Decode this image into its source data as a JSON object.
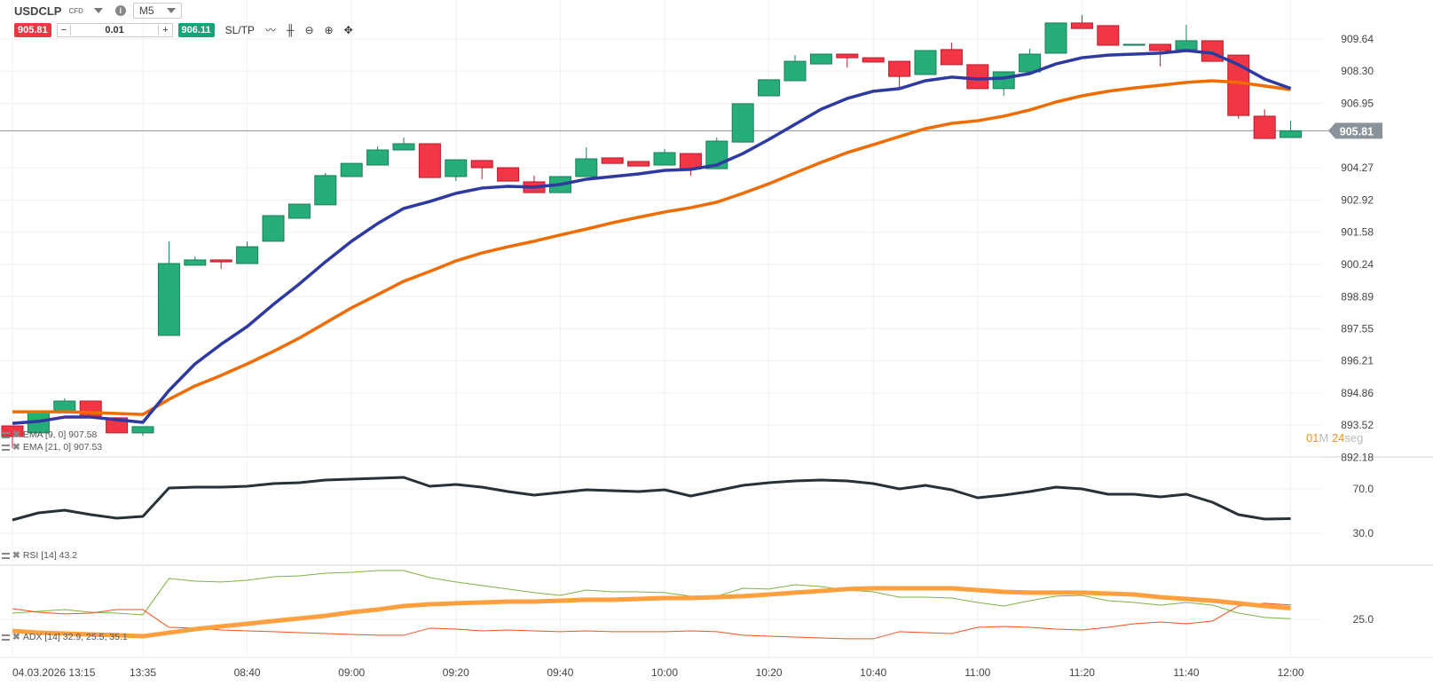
{
  "header": {
    "symbol": "USDCLP",
    "badge": "CFD",
    "timeframe": "M5"
  },
  "trade": {
    "sell_price": "905.81",
    "quantity": "0.01",
    "buy_price": "906.11",
    "sltp_label": "SL/TP",
    "minus": "−",
    "plus": "+"
  },
  "toolbar_icons": [
    "line-chart-icon",
    "candles-icon",
    "zoom-out-icon",
    "zoom-in-icon",
    "crosshair-move-icon"
  ],
  "colors": {
    "up": "#26ad7a",
    "down": "#f23645",
    "ema9": "#2e3a9f",
    "ema21": "#ef6c00",
    "rsi": "#263238",
    "plus_di": "#7cb342",
    "minus_di": "#f4511e",
    "adx": "#ffa040",
    "last_price_tag": "#8a9399"
  },
  "legends": {
    "ema9": "EMA [9, 0] 907.58",
    "ema21": "EMA [21, 0] 907.53",
    "rsi": "RSI [14] 43.2",
    "adx": "ADX [14] 32.9, 25.5, 35.1"
  },
  "timer": {
    "min": "01",
    "min_unit": "M",
    "sec": "24",
    "sec_unit": "seg"
  },
  "chart_data": [
    {
      "type": "candlestick",
      "title": "USDCLP M5",
      "y_ticks": [
        "909.64",
        "908.30",
        "906.95",
        "904.27",
        "902.92",
        "901.58",
        "900.24",
        "898.89",
        "897.55",
        "896.21",
        "894.86",
        "893.52",
        "892.18"
      ],
      "last_price": "905.81",
      "x_labels": [
        {
          "i": 0,
          "t": "04.03.2026 13:15"
        },
        {
          "i": 5,
          "t": "13:35"
        },
        {
          "i": 9,
          "t": "08:40"
        },
        {
          "i": 13,
          "t": "09:00"
        },
        {
          "i": 17,
          "t": "09:20"
        },
        {
          "i": 21,
          "t": "09:40"
        },
        {
          "i": 25,
          "t": "10:00"
        },
        {
          "i": 29,
          "t": "10:20"
        },
        {
          "i": 33,
          "t": "10:40"
        },
        {
          "i": 37,
          "t": "11:00"
        },
        {
          "i": 41,
          "t": "11:20"
        },
        {
          "i": 45,
          "t": "11:40"
        },
        {
          "i": 49,
          "t": "12:00"
        }
      ],
      "ohlc": [
        [
          893.49,
          893.49,
          892.57,
          893.05
        ],
        [
          893.2,
          894.12,
          893.2,
          894.12
        ],
        [
          894.12,
          894.64,
          894.12,
          894.53
        ],
        [
          894.53,
          894.53,
          893.86,
          893.86
        ],
        [
          893.83,
          893.83,
          893.2,
          893.2
        ],
        [
          893.2,
          893.46,
          893.08,
          893.46
        ],
        [
          897.27,
          901.2,
          897.27,
          900.27
        ],
        [
          900.2,
          900.57,
          900.2,
          900.42
        ],
        [
          900.42,
          900.42,
          900.05,
          900.34
        ],
        [
          900.27,
          901.2,
          900.27,
          900.97
        ],
        [
          901.2,
          902.27,
          901.2,
          902.27
        ],
        [
          902.16,
          902.75,
          902.16,
          902.75
        ],
        [
          902.72,
          904.05,
          902.72,
          903.94
        ],
        [
          903.9,
          904.45,
          903.9,
          904.45
        ],
        [
          904.38,
          905.16,
          904.38,
          905.01
        ],
        [
          905.01,
          905.53,
          905.01,
          905.27
        ],
        [
          905.27,
          905.27,
          903.86,
          903.86
        ],
        [
          903.9,
          904.6,
          903.71,
          904.6
        ],
        [
          904.57,
          904.57,
          903.79,
          904.27
        ],
        [
          904.27,
          904.27,
          903.71,
          903.71
        ],
        [
          903.68,
          903.94,
          903.23,
          903.23
        ],
        [
          903.23,
          903.9,
          903.23,
          903.9
        ],
        [
          903.9,
          905.12,
          903.9,
          904.64
        ],
        [
          904.68,
          904.68,
          904.45,
          904.45
        ],
        [
          904.53,
          904.53,
          904.34,
          904.34
        ],
        [
          904.38,
          905.05,
          904.38,
          904.9
        ],
        [
          904.86,
          904.86,
          903.94,
          904.23
        ],
        [
          904.23,
          905.53,
          904.23,
          905.38
        ],
        [
          905.34,
          906.94,
          905.34,
          906.94
        ],
        [
          907.27,
          907.94,
          907.27,
          907.94
        ],
        [
          907.9,
          908.97,
          907.9,
          908.71
        ],
        [
          908.6,
          909.01,
          908.6,
          909.01
        ],
        [
          909.01,
          909.01,
          908.45,
          908.86
        ],
        [
          908.86,
          908.86,
          908.68,
          908.68
        ],
        [
          908.71,
          908.71,
          907.64,
          908.08
        ],
        [
          908.16,
          909.16,
          908.16,
          909.16
        ],
        [
          909.2,
          909.49,
          908.57,
          908.57
        ],
        [
          908.57,
          908.57,
          907.57,
          907.57
        ],
        [
          907.57,
          908.27,
          907.27,
          908.27
        ],
        [
          908.27,
          909.23,
          908.27,
          909.01
        ],
        [
          909.05,
          910.31,
          909.05,
          910.31
        ],
        [
          910.31,
          910.64,
          910.08,
          910.08
        ],
        [
          910.2,
          910.2,
          909.38,
          909.38
        ],
        [
          909.38,
          909.42,
          909.38,
          909.42
        ],
        [
          909.42,
          909.42,
          908.49,
          909.16
        ],
        [
          909.2,
          910.23,
          909.2,
          909.57
        ],
        [
          909.57,
          909.57,
          908.71,
          908.71
        ],
        [
          908.97,
          908.97,
          906.31,
          906.45
        ],
        [
          906.42,
          906.71,
          905.49,
          905.49
        ],
        [
          905.53,
          906.23,
          905.53,
          905.81
        ]
      ],
      "ema9": [
        893.6,
        893.68,
        893.86,
        893.86,
        893.75,
        893.64,
        894.97,
        896.08,
        896.9,
        897.64,
        898.56,
        899.42,
        900.34,
        901.2,
        901.94,
        902.57,
        902.86,
        903.2,
        903.42,
        903.49,
        903.46,
        903.57,
        903.79,
        903.9,
        904.01,
        904.16,
        904.2,
        904.38,
        904.86,
        905.45,
        906.08,
        906.71,
        907.16,
        907.46,
        907.57,
        907.9,
        908.05,
        907.97,
        908.01,
        908.2,
        908.6,
        908.86,
        908.97,
        909.01,
        909.05,
        909.16,
        909.05,
        908.57,
        907.97,
        907.58
      ],
      "ema21": [
        894.08,
        894.08,
        894.08,
        894.05,
        894.01,
        893.97,
        894.6,
        895.16,
        895.6,
        896.08,
        896.6,
        897.16,
        897.79,
        898.42,
        898.97,
        899.53,
        899.94,
        900.38,
        900.71,
        900.97,
        901.2,
        901.46,
        901.71,
        901.97,
        902.2,
        902.42,
        902.6,
        902.83,
        903.2,
        903.6,
        904.05,
        904.49,
        904.9,
        905.23,
        905.57,
        905.9,
        906.12,
        906.23,
        906.42,
        906.68,
        907.01,
        907.27,
        907.46,
        907.6,
        907.71,
        907.83,
        907.9,
        907.83,
        907.68,
        907.53
      ]
    },
    {
      "type": "line",
      "title": "RSI [14]",
      "y_ticks": [
        "70.0",
        "30.0"
      ],
      "rsi": [
        42.0,
        48.4,
        50.8,
        46.8,
        43.6,
        45.2,
        70.8,
        71.6,
        71.6,
        72.4,
        74.8,
        75.6,
        78.0,
        78.8,
        79.6,
        80.4,
        72.4,
        74.0,
        71.6,
        67.6,
        64.4,
        66.8,
        69.2,
        68.4,
        67.6,
        69.2,
        63.6,
        68.4,
        73.2,
        75.6,
        77.2,
        78.0,
        77.2,
        74.8,
        70.0,
        73.2,
        69.2,
        62.0,
        64.4,
        67.6,
        71.6,
        70.0,
        65.2,
        65.2,
        62.8,
        65.2,
        58.0,
        46.8,
        42.8,
        43.2
      ]
    },
    {
      "type": "line",
      "title": "ADX [14]",
      "y_ticks": [
        "25.0"
      ],
      "plus_di": [
        29.4,
        30.6,
        31.9,
        30.0,
        29.4,
        28.1,
        53.8,
        51.9,
        51.3,
        52.5,
        55.0,
        55.6,
        57.5,
        58.1,
        59.4,
        59.4,
        54.4,
        51.3,
        48.8,
        46.3,
        43.8,
        41.9,
        45.6,
        44.4,
        44.4,
        43.8,
        41.3,
        41.3,
        46.9,
        46.3,
        49.4,
        48.1,
        45.6,
        44.4,
        40.6,
        40.6,
        40.0,
        36.9,
        34.4,
        38.1,
        41.3,
        41.9,
        38.1,
        36.9,
        35.0,
        36.9,
        35.0,
        29.4,
        26.3,
        25.5
      ],
      "minus_di": [
        32.5,
        30.0,
        28.8,
        29.4,
        31.9,
        31.9,
        19.4,
        18.8,
        17.5,
        16.9,
        16.3,
        15.6,
        15.0,
        14.4,
        13.8,
        13.8,
        18.8,
        18.1,
        16.9,
        17.5,
        16.9,
        16.3,
        16.9,
        16.3,
        16.3,
        16.3,
        16.9,
        16.3,
        13.8,
        13.1,
        12.5,
        11.9,
        11.3,
        11.3,
        16.3,
        15.6,
        15.0,
        19.4,
        20.0,
        19.4,
        18.1,
        17.5,
        19.4,
        21.9,
        23.1,
        21.9,
        23.8,
        34.4,
        36.3,
        35.1
      ],
      "adx": [
        16.9,
        15.6,
        15.0,
        14.4,
        13.8,
        13.1,
        15.6,
        18.1,
        20.0,
        21.9,
        23.8,
        25.6,
        27.5,
        30.0,
        31.9,
        34.4,
        35.6,
        36.3,
        36.9,
        37.5,
        37.5,
        38.1,
        38.8,
        38.8,
        39.4,
        40.0,
        40.0,
        40.6,
        41.3,
        42.5,
        43.8,
        45.0,
        46.3,
        46.9,
        46.9,
        46.9,
        46.9,
        45.6,
        44.4,
        43.8,
        43.8,
        43.8,
        43.1,
        42.5,
        40.6,
        39.4,
        38.1,
        36.3,
        34.4,
        32.9
      ]
    }
  ]
}
